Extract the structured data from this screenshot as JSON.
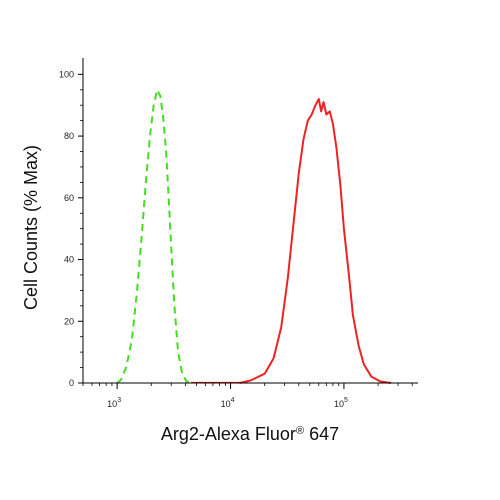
{
  "chart_data": {
    "type": "line",
    "title": "",
    "xlabel": "Arg2-Alexa Fluor",
    "xlabel_superscript": "®",
    "xlabel_suffix": "647",
    "ylabel": "Cell Counts (% Max)",
    "x_scale": "log",
    "xlim": [
      500,
      450000
    ],
    "ylim": [
      0,
      104
    ],
    "y_ticks": [
      0,
      20,
      40,
      60,
      80,
      100
    ],
    "x_ticks": [
      {
        "value": 1000,
        "base": "10",
        "exp": "3"
      },
      {
        "value": 10000,
        "base": "10",
        "exp": "4"
      },
      {
        "value": 100000,
        "base": "10",
        "exp": "5"
      }
    ],
    "grid": false,
    "legend": false,
    "series": [
      {
        "color": "#44dd22",
        "style": "dashed",
        "points": [
          [
            1000,
            0
          ],
          [
            1080,
            1
          ],
          [
            1200,
            5
          ],
          [
            1350,
            14
          ],
          [
            1500,
            30
          ],
          [
            1650,
            48
          ],
          [
            1800,
            66
          ],
          [
            1950,
            80
          ],
          [
            2100,
            90
          ],
          [
            2250,
            95
          ],
          [
            2400,
            93
          ],
          [
            2550,
            86
          ],
          [
            2700,
            75
          ],
          [
            2850,
            60
          ],
          [
            3000,
            44
          ],
          [
            3200,
            25
          ],
          [
            3450,
            10
          ],
          [
            3750,
            3
          ],
          [
            4100,
            0.5
          ],
          [
            4500,
            0
          ]
        ]
      },
      {
        "color": "#ee2222",
        "style": "solid",
        "points": [
          [
            12000,
            0
          ],
          [
            15000,
            0.8
          ],
          [
            20000,
            3
          ],
          [
            24000,
            8
          ],
          [
            28000,
            18
          ],
          [
            32000,
            34
          ],
          [
            36000,
            52
          ],
          [
            40000,
            68
          ],
          [
            44000,
            79
          ],
          [
            48000,
            85
          ],
          [
            52000,
            87
          ],
          [
            56000,
            90
          ],
          [
            60000,
            92
          ],
          [
            63000,
            88
          ],
          [
            66000,
            91
          ],
          [
            70000,
            87
          ],
          [
            75000,
            88
          ],
          [
            80000,
            84
          ],
          [
            86000,
            76
          ],
          [
            93000,
            64
          ],
          [
            100000,
            50
          ],
          [
            110000,
            36
          ],
          [
            120000,
            22
          ],
          [
            135000,
            12
          ],
          [
            150000,
            6
          ],
          [
            175000,
            2
          ],
          [
            210000,
            0.5
          ],
          [
            260000,
            0
          ]
        ]
      }
    ]
  }
}
